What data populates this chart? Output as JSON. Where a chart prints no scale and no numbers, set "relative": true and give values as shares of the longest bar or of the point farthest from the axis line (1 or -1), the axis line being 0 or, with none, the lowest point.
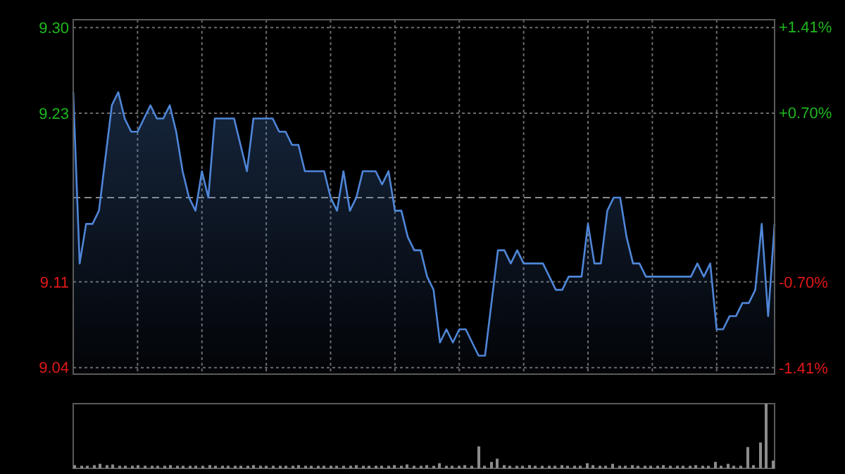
{
  "chart_data": [
    {
      "type": "area",
      "categories": [
        null,
        null,
        null,
        null,
        null,
        null,
        null,
        null,
        null,
        null,
        null,
        null,
        null,
        null,
        null,
        null,
        null,
        null,
        null,
        null,
        null,
        null,
        null,
        null,
        null,
        null,
        null,
        null,
        null,
        null,
        null,
        null,
        null,
        null,
        null,
        null,
        null,
        null,
        null,
        null,
        null,
        null,
        null,
        null,
        null,
        null,
        null,
        null,
        null,
        null,
        null,
        null,
        null,
        null,
        null,
        null,
        null,
        null,
        null,
        null,
        null,
        null,
        null,
        null,
        null,
        null,
        null,
        null,
        null,
        null,
        null,
        null,
        null,
        null,
        null,
        null,
        null,
        null,
        null,
        null,
        null,
        null,
        null,
        null,
        null,
        null,
        null,
        null,
        null,
        null,
        null,
        null,
        null,
        null,
        null,
        null,
        null,
        null,
        null,
        null,
        null,
        null,
        null,
        null,
        null,
        null,
        null,
        null,
        null,
        null
      ],
      "ylim": [
        9.036,
        9.305
      ],
      "yticks": [
        {
          "value": 9.041,
          "label": "9.04"
        },
        {
          "value": 9.106,
          "label": "9.11"
        },
        {
          "value": 9.234,
          "label": "9.23"
        },
        {
          "value": 9.299,
          "label": "9.30"
        }
      ],
      "y2lim": [
        -1.46,
        1.47
      ],
      "y2ticks": [
        {
          "value": -1.41,
          "label": "-1.41%"
        },
        {
          "value": -0.7,
          "label": "-0.70%"
        },
        {
          "value": 0.7,
          "label": "+0.70%"
        },
        {
          "value": 1.41,
          "label": "+1.41%"
        }
      ],
      "ref_lines": [
        {
          "axis": "y",
          "value": 9.17,
          "color": "#8a8a8a",
          "line_style": "dashed"
        }
      ],
      "grid": true,
      "series": [
        {
          "color": "#4f86d8",
          "values": [
            9.25,
            9.12,
            9.15,
            9.15,
            9.16,
            9.2,
            9.24,
            9.25,
            9.23,
            9.22,
            9.22,
            9.23,
            9.24,
            9.23,
            9.23,
            9.24,
            9.22,
            9.19,
            9.17,
            9.16,
            9.19,
            9.17,
            9.23,
            9.23,
            9.23,
            9.23,
            9.21,
            9.19,
            9.23,
            9.23,
            9.23,
            9.23,
            9.22,
            9.22,
            9.21,
            9.21,
            9.19,
            9.19,
            9.19,
            9.19,
            9.17,
            9.16,
            9.19,
            9.16,
            9.17,
            9.19,
            9.19,
            9.19,
            9.18,
            9.19,
            9.16,
            9.16,
            9.14,
            9.13,
            9.13,
            9.11,
            9.1,
            9.06,
            9.07,
            9.06,
            9.07,
            9.07,
            9.06,
            9.05,
            9.05,
            9.09,
            9.13,
            9.13,
            9.12,
            9.13,
            9.12,
            9.12,
            9.12,
            9.12,
            9.11,
            9.1,
            9.1,
            9.11,
            9.11,
            9.11,
            9.15,
            9.12,
            9.12,
            9.16,
            9.17,
            9.17,
            9.14,
            9.12,
            9.12,
            9.11,
            9.11,
            9.11,
            9.11,
            9.11,
            9.11,
            9.11,
            9.11,
            9.12,
            9.11,
            9.12,
            9.07,
            9.07,
            9.08,
            9.08,
            9.09,
            9.09,
            9.1,
            9.15,
            9.08,
            9.15
          ]
        }
      ]
    },
    {
      "type": "bar",
      "relative": true,
      "categories": [
        null,
        null,
        null,
        null,
        null,
        null,
        null,
        null,
        null,
        null,
        null,
        null,
        null,
        null,
        null,
        null,
        null,
        null,
        null,
        null,
        null,
        null,
        null,
        null,
        null,
        null,
        null,
        null,
        null,
        null,
        null,
        null,
        null,
        null,
        null,
        null,
        null,
        null,
        null,
        null,
        null,
        null,
        null,
        null,
        null,
        null,
        null,
        null,
        null,
        null,
        null,
        null,
        null,
        null,
        null,
        null,
        null,
        null,
        null,
        null,
        null,
        null,
        null,
        null,
        null,
        null,
        null,
        null,
        null,
        null,
        null,
        null,
        null,
        null,
        null,
        null,
        null,
        null,
        null,
        null,
        null,
        null,
        null,
        null,
        null,
        null,
        null,
        null,
        null,
        null,
        null,
        null,
        null,
        null,
        null,
        null,
        null,
        null,
        null,
        null,
        null,
        null,
        null,
        null,
        null,
        null,
        null,
        null,
        null,
        null
      ],
      "color": "#8c8c8c",
      "values": [
        0.05,
        0.04,
        0.04,
        0.05,
        0.07,
        0.05,
        0.06,
        0.04,
        0.04,
        0.04,
        0.05,
        0.04,
        0.04,
        0.04,
        0.04,
        0.05,
        0.04,
        0.04,
        0.04,
        0.04,
        0.04,
        0.05,
        0.04,
        0.04,
        0.04,
        0.04,
        0.04,
        0.04,
        0.05,
        0.04,
        0.04,
        0.04,
        0.04,
        0.04,
        0.04,
        0.05,
        0.04,
        0.04,
        0.04,
        0.04,
        0.04,
        0.04,
        0.04,
        0.04,
        0.05,
        0.04,
        0.04,
        0.04,
        0.04,
        0.04,
        0.05,
        0.04,
        0.06,
        0.04,
        0.04,
        0.05,
        0.04,
        0.08,
        0.04,
        0.04,
        0.04,
        0.05,
        0.04,
        0.34,
        0.04,
        0.1,
        0.15,
        0.05,
        0.04,
        0.04,
        0.04,
        0.05,
        0.04,
        0.04,
        0.04,
        0.04,
        0.05,
        0.04,
        0.04,
        0.04,
        0.08,
        0.05,
        0.04,
        0.04,
        0.07,
        0.04,
        0.04,
        0.05,
        0.04,
        0.04,
        0.04,
        0.04,
        0.05,
        0.04,
        0.04,
        0.04,
        0.04,
        0.05,
        0.04,
        0.04,
        0.1,
        0.04,
        0.07,
        0.04,
        0.04,
        0.33,
        0.05,
        0.4,
        1,
        0.12
      ]
    }
  ]
}
